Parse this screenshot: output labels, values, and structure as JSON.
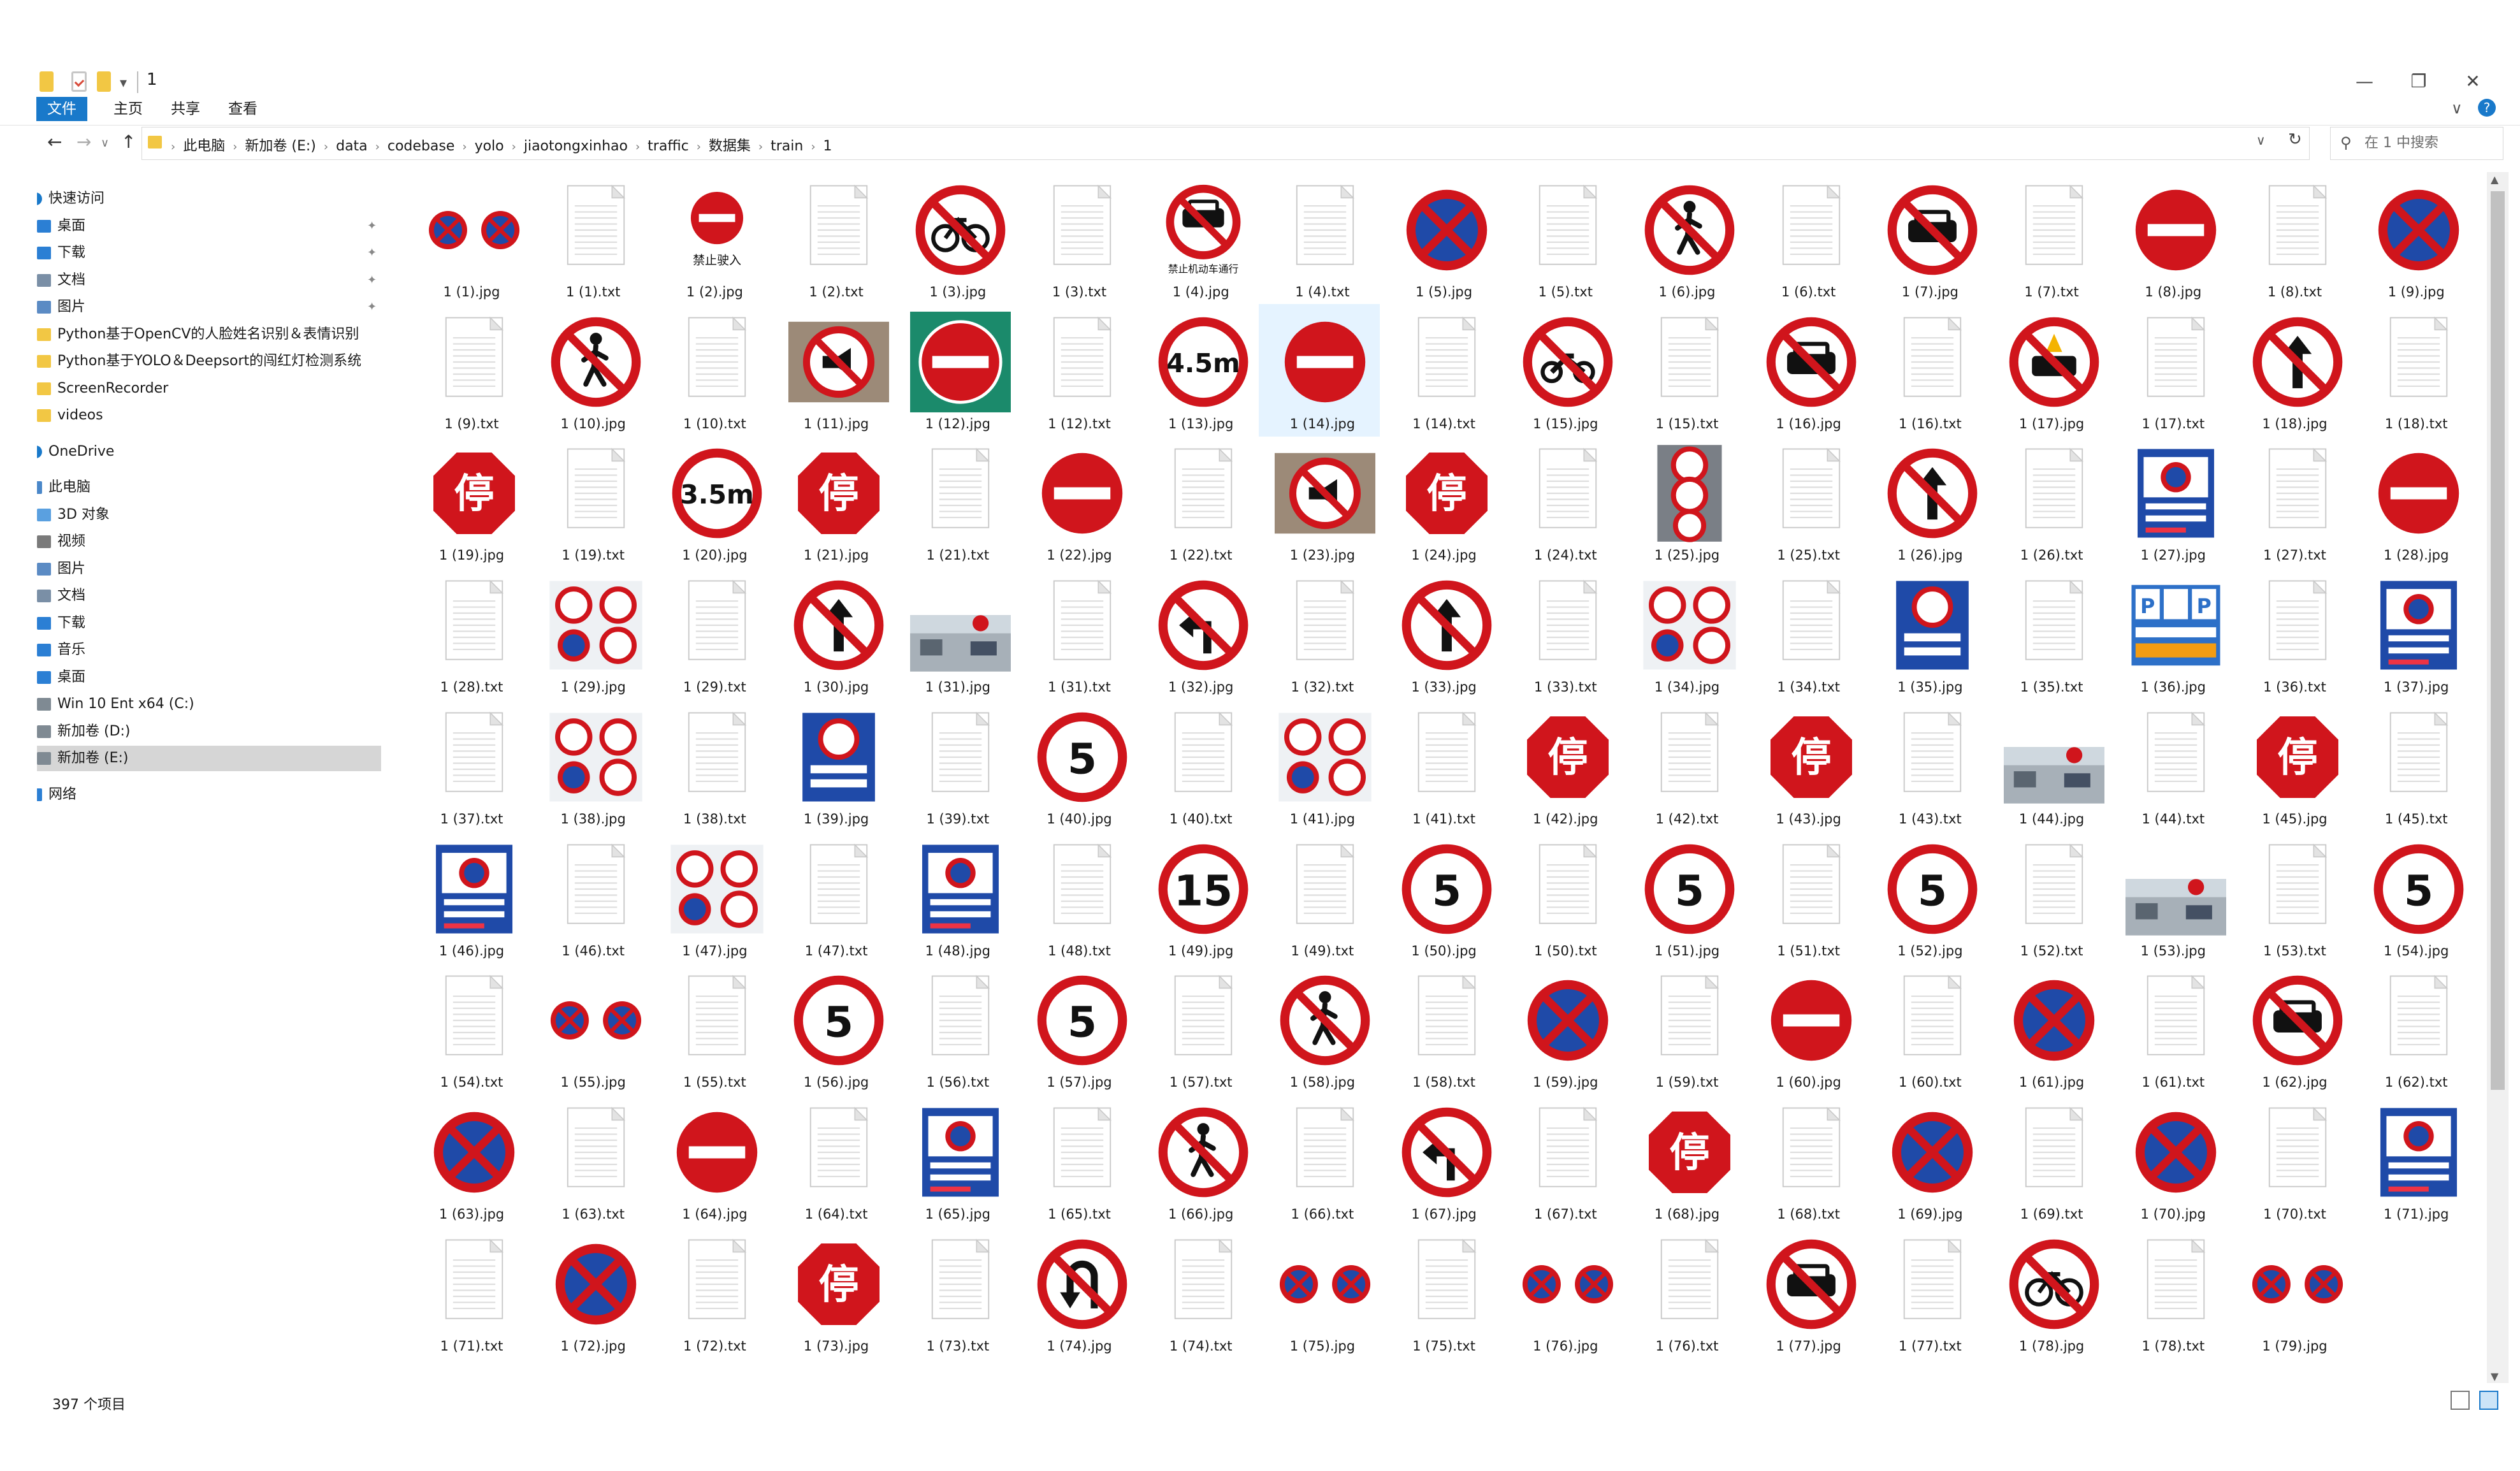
{
  "window": {
    "title": "1",
    "min": "—",
    "max": "❐",
    "close": "✕",
    "quick_dropdown": "▾"
  },
  "ribbon": {
    "tabs": [
      "文件",
      "主页",
      "共享",
      "查看"
    ],
    "expand": "∨",
    "help": "?"
  },
  "nav_buttons": {
    "back": "←",
    "forward": "→",
    "recent": "∨",
    "up": "↑"
  },
  "address": {
    "crumbs": [
      "此电脑",
      "新加卷 (E:)",
      "data",
      "codebase",
      "yolo",
      "jiaotongxinhao",
      "traffic",
      "数据集",
      "train",
      "1"
    ],
    "separator": "›",
    "dropdown": "∨",
    "refresh": "↻"
  },
  "search": {
    "placeholder": "在 1 中搜索",
    "icon": "⚲"
  },
  "nav_pane": [
    {
      "label": "快速访问",
      "icon": "star",
      "level": 0,
      "pinned": false
    },
    {
      "label": "桌面",
      "icon": "desktop",
      "level": 1,
      "pinned": true
    },
    {
      "label": "下载",
      "icon": "download",
      "level": 1,
      "pinned": true
    },
    {
      "label": "文档",
      "icon": "document",
      "level": 1,
      "pinned": true
    },
    {
      "label": "图片",
      "icon": "pictures",
      "level": 1,
      "pinned": true
    },
    {
      "label": "Python基于OpenCV的人脸姓名识别＆表情识别",
      "icon": "folder",
      "level": 1,
      "pinned": false
    },
    {
      "label": "Python基于YOLO＆Deepsort的闯红灯检测系统",
      "icon": "folder",
      "level": 1,
      "pinned": false
    },
    {
      "label": "ScreenRecorder",
      "icon": "folder",
      "level": 1,
      "pinned": false
    },
    {
      "label": "videos",
      "icon": "folder",
      "level": 1,
      "pinned": false
    },
    {
      "label": "OneDrive",
      "icon": "cloud",
      "level": 0,
      "pinned": false
    },
    {
      "label": "此电脑",
      "icon": "pc",
      "level": 0,
      "pinned": false
    },
    {
      "label": "3D 对象",
      "icon": "cube",
      "level": 1,
      "pinned": false
    },
    {
      "label": "视频",
      "icon": "video",
      "level": 1,
      "pinned": false
    },
    {
      "label": "图片",
      "icon": "pictures",
      "level": 1,
      "pinned": false
    },
    {
      "label": "文档",
      "icon": "document",
      "level": 1,
      "pinned": false
    },
    {
      "label": "下载",
      "icon": "download",
      "level": 1,
      "pinned": false
    },
    {
      "label": "音乐",
      "icon": "music",
      "level": 1,
      "pinned": false
    },
    {
      "label": "桌面",
      "icon": "desktop",
      "level": 1,
      "pinned": false
    },
    {
      "label": "Win 10 Ent x64 (C:)",
      "icon": "drive",
      "level": 1,
      "pinned": false
    },
    {
      "label": "新加卷 (D:)",
      "icon": "drive",
      "level": 1,
      "pinned": false
    },
    {
      "label": "新加卷 (E:)",
      "icon": "drive",
      "level": 1,
      "pinned": false,
      "selected": true
    },
    {
      "label": "网络",
      "icon": "network",
      "level": 0,
      "pinned": false
    }
  ],
  "pin_glyph": "✦",
  "files": [
    {
      "name": "1 (1).jpg",
      "kind": "noparking2"
    },
    {
      "name": "1 (1).txt",
      "kind": "txt"
    },
    {
      "name": "1 (2).jpg",
      "kind": "noentry-text",
      "text": "禁止驶入"
    },
    {
      "name": "1 (2).txt",
      "kind": "txt"
    },
    {
      "name": "1 (3).jpg",
      "kind": "prohibit",
      "symbol": "bicycle"
    },
    {
      "name": "1 (3).txt",
      "kind": "txt"
    },
    {
      "name": "1 (4).jpg",
      "kind": "prohibit-text",
      "symbol": "car",
      "text": "禁止机动车通行"
    },
    {
      "name": "1 (4).txt",
      "kind": "txt"
    },
    {
      "name": "1 (5).jpg",
      "kind": "noparking"
    },
    {
      "name": "1 (5).txt",
      "kind": "txt"
    },
    {
      "name": "1 (6).jpg",
      "kind": "prohibit",
      "symbol": "person"
    },
    {
      "name": "1 (6).txt",
      "kind": "txt"
    },
    {
      "name": "1 (7).jpg",
      "kind": "prohibit",
      "symbol": "car"
    },
    {
      "name": "1 (7).txt",
      "kind": "txt"
    },
    {
      "name": "1 (8).jpg",
      "kind": "noentry"
    },
    {
      "name": "1 (8).txt",
      "kind": "txt"
    },
    {
      "name": "1 (9).jpg",
      "kind": "noparking"
    },
    {
      "name": "1 (9).txt",
      "kind": "txt"
    },
    {
      "name": "1 (10).jpg",
      "kind": "prohibit",
      "symbol": "person"
    },
    {
      "name": "1 (10).txt",
      "kind": "txt"
    },
    {
      "name": "1 (11).jpg",
      "kind": "photo-horn"
    },
    {
      "name": "1 (12).jpg",
      "kind": "noentry-green"
    },
    {
      "name": "1 (12).txt",
      "kind": "txt"
    },
    {
      "name": "1 (13).jpg",
      "kind": "limit",
      "text": "4.5m"
    },
    {
      "name": "1 (14).jpg",
      "kind": "noentry",
      "hl": true
    },
    {
      "name": "1 (14).txt",
      "kind": "txt"
    },
    {
      "name": "1 (15).jpg",
      "kind": "prohibit",
      "symbol": "moto"
    },
    {
      "name": "1 (15).txt",
      "kind": "txt"
    },
    {
      "name": "1 (16).jpg",
      "kind": "prohibit",
      "symbol": "car"
    },
    {
      "name": "1 (16).txt",
      "kind": "txt"
    },
    {
      "name": "1 (17).jpg",
      "kind": "prohibit",
      "symbol": "fire"
    },
    {
      "name": "1 (17).txt",
      "kind": "txt"
    },
    {
      "name": "1 (18).jpg",
      "kind": "prohibit",
      "symbol": "arrow-up"
    },
    {
      "name": "1 (18).txt",
      "kind": "txt"
    },
    {
      "name": "1 (19).jpg",
      "kind": "stop"
    },
    {
      "name": "1 (19).txt",
      "kind": "txt"
    },
    {
      "name": "1 (20).jpg",
      "kind": "limit",
      "text": "3.5m"
    },
    {
      "name": "1 (21).jpg",
      "kind": "stop"
    },
    {
      "name": "1 (21).txt",
      "kind": "txt"
    },
    {
      "name": "1 (22).jpg",
      "kind": "noentry"
    },
    {
      "name": "1 (22).txt",
      "kind": "txt"
    },
    {
      "name": "1 (23).jpg",
      "kind": "photo-horn"
    },
    {
      "name": "1 (24).jpg",
      "kind": "stop"
    },
    {
      "name": "1 (24).txt",
      "kind": "txt"
    },
    {
      "name": "1 (25).jpg",
      "kind": "signpole"
    },
    {
      "name": "1 (25).txt",
      "kind": "txt"
    },
    {
      "name": "1 (26).jpg",
      "kind": "prohibit",
      "symbol": "arrow-up"
    },
    {
      "name": "1 (26).txt",
      "kind": "txt"
    },
    {
      "name": "1 (27).jpg",
      "kind": "blue-board"
    },
    {
      "name": "1 (27).txt",
      "kind": "txt"
    },
    {
      "name": "1 (28).jpg",
      "kind": "noentry"
    },
    {
      "name": "1 (28).txt",
      "kind": "txt"
    },
    {
      "name": "1 (29).jpg",
      "kind": "multi"
    },
    {
      "name": "1 (29).txt",
      "kind": "txt"
    },
    {
      "name": "1 (30).jpg",
      "kind": "prohibit",
      "symbol": "arrow-up"
    },
    {
      "name": "1 (31).jpg",
      "kind": "street"
    },
    {
      "name": "1 (31).txt",
      "kind": "txt"
    },
    {
      "name": "1 (32).jpg",
      "kind": "prohibit",
      "symbol": "arrow-left"
    },
    {
      "name": "1 (32).txt",
      "kind": "txt"
    },
    {
      "name": "1 (33).jpg",
      "kind": "prohibit",
      "symbol": "arrow-up"
    },
    {
      "name": "1 (33).txt",
      "kind": "txt"
    },
    {
      "name": "1 (34).jpg",
      "kind": "multi"
    },
    {
      "name": "1 (34).txt",
      "kind": "txt"
    },
    {
      "name": "1 (35).jpg",
      "kind": "blue-limit"
    },
    {
      "name": "1 (35).txt",
      "kind": "txt"
    },
    {
      "name": "1 (36).jpg",
      "kind": "parking-board"
    },
    {
      "name": "1 (36).txt",
      "kind": "txt"
    },
    {
      "name": "1 (37).jpg",
      "kind": "blue-board"
    },
    {
      "name": "1 (37).txt",
      "kind": "txt"
    },
    {
      "name": "1 (38).jpg",
      "kind": "multi"
    },
    {
      "name": "1 (38).txt",
      "kind": "txt"
    },
    {
      "name": "1 (39).jpg",
      "kind": "blue-limit"
    },
    {
      "name": "1 (39).txt",
      "kind": "txt"
    },
    {
      "name": "1 (40).jpg",
      "kind": "limit",
      "text": "5"
    },
    {
      "name": "1 (40).txt",
      "kind": "txt"
    },
    {
      "name": "1 (41).jpg",
      "kind": "multi"
    },
    {
      "name": "1 (41).txt",
      "kind": "txt"
    },
    {
      "name": "1 (42).jpg",
      "kind": "stop"
    },
    {
      "name": "1 (42).txt",
      "kind": "txt"
    },
    {
      "name": "1 (43).jpg",
      "kind": "stop"
    },
    {
      "name": "1 (43).txt",
      "kind": "txt"
    },
    {
      "name": "1 (44).jpg",
      "kind": "street"
    },
    {
      "name": "1 (44).txt",
      "kind": "txt"
    },
    {
      "name": "1 (45).jpg",
      "kind": "stop"
    },
    {
      "name": "1 (45).txt",
      "kind": "txt"
    },
    {
      "name": "1 (46).jpg",
      "kind": "blue-board"
    },
    {
      "name": "1 (46).txt",
      "kind": "txt"
    },
    {
      "name": "1 (47).jpg",
      "kind": "multi"
    },
    {
      "name": "1 (47).txt",
      "kind": "txt"
    },
    {
      "name": "1 (48).jpg",
      "kind": "blue-board"
    },
    {
      "name": "1 (48).txt",
      "kind": "txt"
    },
    {
      "name": "1 (49).jpg",
      "kind": "limit",
      "text": "15"
    },
    {
      "name": "1 (49).txt",
      "kind": "txt"
    },
    {
      "name": "1 (50).jpg",
      "kind": "limit",
      "text": "5"
    },
    {
      "name": "1 (50).txt",
      "kind": "txt"
    },
    {
      "name": "1 (51).jpg",
      "kind": "limit",
      "text": "5"
    },
    {
      "name": "1 (51).txt",
      "kind": "txt"
    },
    {
      "name": "1 (52).jpg",
      "kind": "limit",
      "text": "5"
    },
    {
      "name": "1 (52).txt",
      "kind": "txt"
    },
    {
      "name": "1 (53).jpg",
      "kind": "street"
    },
    {
      "name": "1 (53).txt",
      "kind": "txt"
    },
    {
      "name": "1 (54).jpg",
      "kind": "limit",
      "text": "5"
    },
    {
      "name": "1 (54).txt",
      "kind": "txt"
    },
    {
      "name": "1 (55).jpg",
      "kind": "noparking2"
    },
    {
      "name": "1 (55).txt",
      "kind": "txt"
    },
    {
      "name": "1 (56).jpg",
      "kind": "limit",
      "text": "5"
    },
    {
      "name": "1 (56).txt",
      "kind": "txt"
    },
    {
      "name": "1 (57).jpg",
      "kind": "limit",
      "text": "5"
    },
    {
      "name": "1 (57).txt",
      "kind": "txt"
    },
    {
      "name": "1 (58).jpg",
      "kind": "prohibit",
      "symbol": "person"
    },
    {
      "name": "1 (58).txt",
      "kind": "txt"
    },
    {
      "name": "1 (59).jpg",
      "kind": "noparking"
    },
    {
      "name": "1 (59).txt",
      "kind": "txt"
    },
    {
      "name": "1 (60).jpg",
      "kind": "noentry"
    },
    {
      "name": "1 (60).txt",
      "kind": "txt"
    },
    {
      "name": "1 (61).jpg",
      "kind": "noparking"
    },
    {
      "name": "1 (61).txt",
      "kind": "txt"
    },
    {
      "name": "1 (62).jpg",
      "kind": "prohibit",
      "symbol": "car"
    },
    {
      "name": "1 (62).txt",
      "kind": "txt"
    },
    {
      "name": "1 (63).jpg",
      "kind": "noparking"
    },
    {
      "name": "1 (63).txt",
      "kind": "txt"
    },
    {
      "name": "1 (64).jpg",
      "kind": "noentry"
    },
    {
      "name": "1 (64).txt",
      "kind": "txt"
    },
    {
      "name": "1 (65).jpg",
      "kind": "blue-board"
    },
    {
      "name": "1 (65).txt",
      "kind": "txt"
    },
    {
      "name": "1 (66).jpg",
      "kind": "prohibit",
      "symbol": "person"
    },
    {
      "name": "1 (66).txt",
      "kind": "txt"
    },
    {
      "name": "1 (67).jpg",
      "kind": "prohibit",
      "symbol": "arrow-left"
    },
    {
      "name": "1 (67).txt",
      "kind": "txt"
    },
    {
      "name": "1 (68).jpg",
      "kind": "stop"
    },
    {
      "name": "1 (68).txt",
      "kind": "txt"
    },
    {
      "name": "1 (69).jpg",
      "kind": "noparking"
    },
    {
      "name": "1 (69).txt",
      "kind": "txt"
    },
    {
      "name": "1 (70).jpg",
      "kind": "noparking"
    },
    {
      "name": "1 (70).txt",
      "kind": "txt"
    },
    {
      "name": "1 (71).jpg",
      "kind": "blue-board"
    },
    {
      "name": "1 (71).txt",
      "kind": "txt"
    },
    {
      "name": "1 (72).jpg",
      "kind": "noparking"
    },
    {
      "name": "1 (72).txt",
      "kind": "txt"
    },
    {
      "name": "1 (73).jpg",
      "kind": "stop"
    },
    {
      "name": "1 (73).txt",
      "kind": "txt"
    },
    {
      "name": "1 (74).jpg",
      "kind": "prohibit",
      "symbol": "uturn"
    },
    {
      "name": "1 (74).txt",
      "kind": "txt"
    },
    {
      "name": "1 (75).jpg",
      "kind": "noparking2"
    },
    {
      "name": "1 (75).txt",
      "kind": "txt"
    },
    {
      "name": "1 (76).jpg",
      "kind": "noparking2"
    },
    {
      "name": "1 (76).txt",
      "kind": "txt"
    },
    {
      "name": "1 (77).jpg",
      "kind": "prohibit",
      "symbol": "car"
    },
    {
      "name": "1 (77).txt",
      "kind": "txt"
    },
    {
      "name": "1 (78).jpg",
      "kind": "prohibit",
      "symbol": "bicycle"
    },
    {
      "name": "1 (78).txt",
      "kind": "txt"
    },
    {
      "name": "1 (79).jpg",
      "kind": "noparking2"
    }
  ],
  "status": {
    "count": "397 个项目"
  },
  "stop_char": "停",
  "colors": {
    "accent": "#1979ca",
    "sign_red": "#d0151c",
    "sign_blue": "#1f4aa8",
    "selected_bg": "#d9d9d9",
    "hover_bg": "#e5f3ff"
  }
}
